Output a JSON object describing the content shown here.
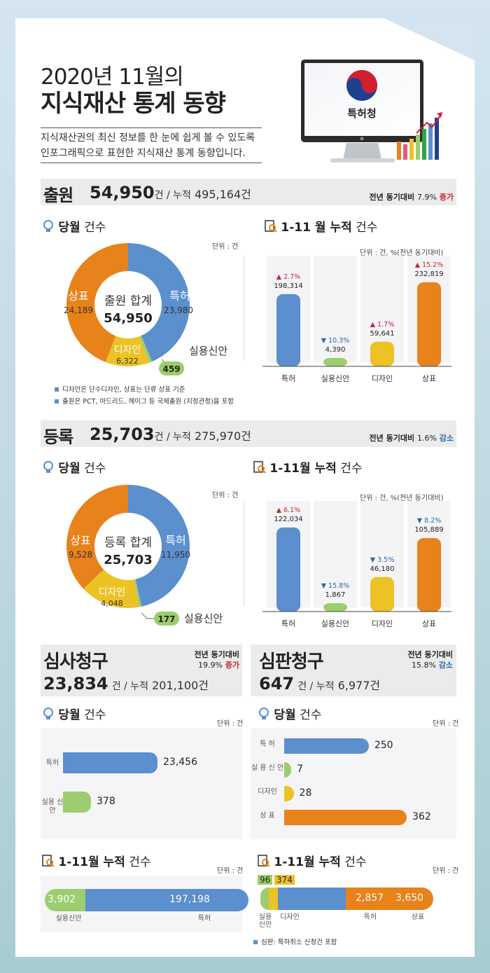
{
  "header": {
    "line1": "2020년 11월의",
    "line2": "지식재산 통계 동향",
    "intro1": "지식재산권의 최신 정보를 한 눈에 쉽게 볼 수 있도록",
    "intro2": "인포그래픽으로 표현한 지식재산 통계 동향입니다.",
    "monitor_text": "특허청"
  },
  "colors": {
    "patent": "#5b8fce",
    "utility": "#9ccd6e",
    "design": "#ecc224",
    "trademark": "#e8821a",
    "increase": "#c0282e",
    "decrease": "#2b6aa8"
  },
  "filing": {
    "title": "출원",
    "count": "54,950",
    "unit": "건",
    "sep": " / ",
    "cum_label": "누적",
    "cum": "495,164건",
    "yoy_label": "전년 동기대비",
    "yoy_value": "7.9%",
    "yoy_dir": "증가",
    "month_title_b": "당월",
    "month_title": "건수",
    "unit_text": "단위 : 건",
    "donut_center_label": "출원 합계",
    "donut_center_value": "54,950",
    "notes": [
      "디자인은 단수디자인, 상표는 단류 상표 기준",
      "출원은 PCT, 마드리드, 헤이그 등 국제출원 (지정관청)을 포함"
    ],
    "cum_title_b": "1-11 월 누적",
    "cum_title": "건수",
    "cum_unit": "단위 : 건, %(전년 동기대비)"
  },
  "registration": {
    "title": "등록",
    "count": "25,703",
    "unit": "건",
    "sep": " / ",
    "cum_label": "누적",
    "cum": "275,970건",
    "yoy_label": "전년 동기대비",
    "yoy_value": "1.6%",
    "yoy_dir": "감소",
    "month_title_b": "당월",
    "month_title": "건수",
    "unit_text": "단위 : 건",
    "donut_center_label": "등록 합계",
    "donut_center_value": "25,703",
    "cum_title_b": "1-11월 누적",
    "cum_title": "건수",
    "cum_unit": "단위 : 건, %(전년 동기대비)"
  },
  "exam": {
    "title": "심사청구",
    "count": "23,834",
    "unit": "건",
    "sep": " / ",
    "cum_label": "누적",
    "cum": "201,100건",
    "yoy_label": "전년 동기대비",
    "yoy_value": "19.9%",
    "yoy_dir": "증가",
    "month_title_b": "당월",
    "month_title": "건수",
    "unit_text": "단위 : 건",
    "cum_title_b": "1-11월 누적",
    "cum_title": "건수",
    "cum_unit": "단위 : 건",
    "cum_labels": [
      "실용신안",
      "특허"
    ]
  },
  "trial": {
    "title": "심판청구",
    "count": "647",
    "unit": "건",
    "sep": " / ",
    "cum_label": "누적",
    "cum": "6,977건",
    "yoy_label": "전년 동기대비",
    "yoy_value": "15.8%",
    "yoy_dir": "감소",
    "month_title_b": "당월",
    "month_title": "건수",
    "unit_text": "단위 : 건",
    "cum_title_b": "1-11월 누적",
    "cum_title": "건수",
    "cum_unit": "단위 : 건",
    "note": "심판: 특허취소 신청건 포함",
    "cum_labels": [
      "실용 신안",
      "디자인",
      "특허",
      "상표"
    ]
  },
  "chart_data": [
    {
      "type": "pie",
      "id": "filing-month",
      "categories": [
        "특허",
        "실용신안",
        "디자인",
        "상표"
      ],
      "values": [
        23980,
        459,
        6322,
        24189
      ]
    },
    {
      "type": "bar",
      "id": "filing-cum",
      "categories": [
        "특허",
        "실용신안",
        "디자인",
        "상표"
      ],
      "values": [
        198314,
        4390,
        59641,
        232819
      ],
      "labels": [
        "198,314",
        "4,390",
        "59,641",
        "232,819"
      ],
      "changes": [
        "2.7%",
        "10.3%",
        "1.7%",
        "15.2%"
      ],
      "directions": [
        "up",
        "down",
        "up",
        "up"
      ]
    },
    {
      "type": "pie",
      "id": "registration-month",
      "categories": [
        "특허",
        "실용신안",
        "디자인",
        "상표"
      ],
      "values": [
        11950,
        177,
        4048,
        9528
      ]
    },
    {
      "type": "bar",
      "id": "registration-cum",
      "categories": [
        "특허",
        "실용신안",
        "디자인",
        "상표"
      ],
      "values": [
        122034,
        1867,
        46180,
        105889
      ],
      "labels": [
        "122,034",
        "1,867",
        "46,180",
        "105,889"
      ],
      "changes": [
        "6.1%",
        "15.8%",
        "3.5%",
        "8.2%"
      ],
      "directions": [
        "up",
        "down",
        "down",
        "down"
      ]
    },
    {
      "type": "bar",
      "id": "exam-month",
      "orientation": "horizontal",
      "categories": [
        "특허",
        "실용 신안"
      ],
      "values": [
        23456,
        378
      ],
      "labels": [
        "23,456",
        "378"
      ]
    },
    {
      "type": "bar",
      "id": "exam-cum",
      "orientation": "stacked-horizontal",
      "categories": [
        "실용신안",
        "특허"
      ],
      "values": [
        3902,
        197198
      ],
      "labels": [
        "3,902",
        "197,198"
      ]
    },
    {
      "type": "bar",
      "id": "trial-month",
      "orientation": "horizontal",
      "categories": [
        "특 허",
        "실 용 신 안",
        "디자인",
        "상 표"
      ],
      "values": [
        250,
        7,
        28,
        362
      ],
      "labels": [
        "250",
        "7",
        "28",
        "362"
      ]
    },
    {
      "type": "bar",
      "id": "trial-cum",
      "orientation": "stacked-horizontal",
      "categories": [
        "실용신안",
        "디자인",
        "특허",
        "상표"
      ],
      "values": [
        96,
        374,
        2857,
        3650
      ],
      "labels": [
        "96",
        "374",
        "2,857",
        "3,650"
      ]
    }
  ]
}
